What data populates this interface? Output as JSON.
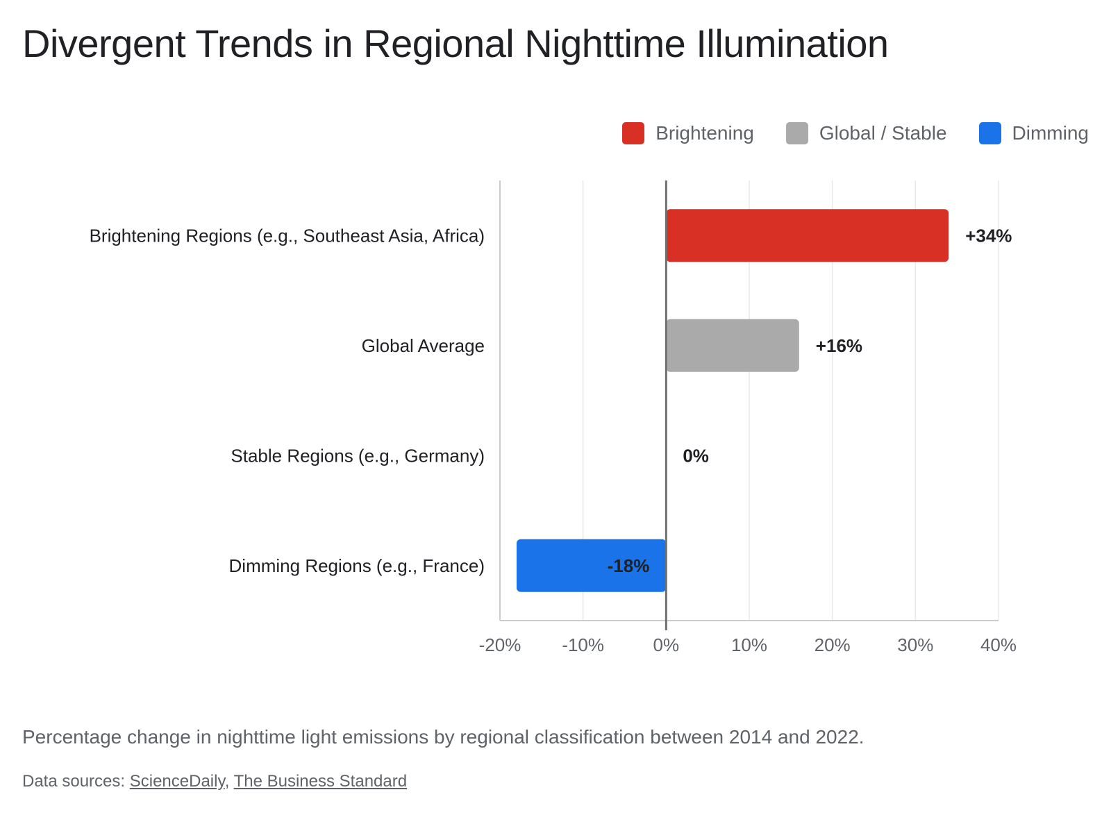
{
  "chart_data": {
    "type": "bar",
    "orientation": "horizontal",
    "title": "Divergent Trends in Regional Nighttime Illumination",
    "categories": [
      "Brightening Regions (e.g., Southeast Asia, Africa)",
      "Global Average",
      "Stable Regions (e.g., Germany)",
      "Dimming Regions (e.g., France)"
    ],
    "values": [
      34,
      16,
      0,
      -18
    ],
    "data_labels": [
      "+34%",
      "+16%",
      "0%",
      "-18%"
    ],
    "bar_groups": [
      "Brightening",
      "Global / Stable",
      "Global / Stable",
      "Dimming"
    ],
    "xlim": [
      -20,
      40
    ],
    "x_ticks": [
      -20,
      -10,
      0,
      10,
      20,
      30,
      40
    ],
    "x_tick_labels": [
      "-20%",
      "-10%",
      "0%",
      "10%",
      "20%",
      "30%",
      "40%"
    ],
    "xlabel": "",
    "ylabel": "",
    "grid": "vertical",
    "legend_position": "top-right",
    "legend": [
      {
        "label": "Brightening",
        "color": "#d93025"
      },
      {
        "label": "Global / Stable",
        "color": "#aaaaaa"
      },
      {
        "label": "Dimming",
        "color": "#1a73e8"
      }
    ]
  },
  "caption": "Percentage change in nighttime light emissions by regional classification between 2014 and 2022.",
  "sources": {
    "prefix": "Data sources: ",
    "links": [
      "ScienceDaily",
      "The Business Standard"
    ],
    "separator": ", "
  },
  "colors": {
    "grid": "#e8e8e8",
    "zero_line": "#707070",
    "axis_line": "#cccccc",
    "tick_text": "#5f6368",
    "label_text": "#202124"
  }
}
